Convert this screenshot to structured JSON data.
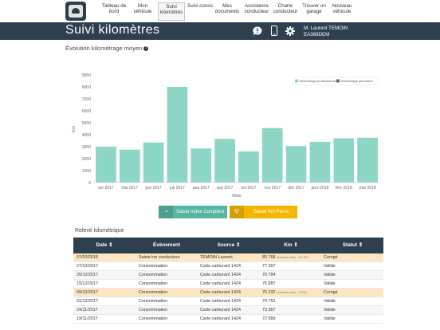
{
  "nav": {
    "items": [
      {
        "l1": "Tableau de",
        "l2": "bord"
      },
      {
        "l1": "Mon",
        "l2": "véhicule"
      },
      {
        "l1": "Suivi",
        "l2": "kilomètres"
      },
      {
        "l1": "Suivi conso",
        "l2": ""
      },
      {
        "l1": "Mes",
        "l2": "documents"
      },
      {
        "l1": "Assistance",
        "l2": "conducteur"
      },
      {
        "l1": "Charte",
        "l2": "conducteur"
      },
      {
        "l1": "Trouver un",
        "l2": "garage"
      },
      {
        "l1": "Nouveau",
        "l2": "véhicule"
      }
    ],
    "active_index": 2
  },
  "header": {
    "title": "Suivi kilomètres",
    "user_name": "M. Laurent TEMOIN",
    "plate": "EA368DEM",
    "icons": [
      "alert-icon",
      "phone-icon",
      "gear-icon"
    ]
  },
  "chart_section": {
    "title": "Évolution kilométrage moyen",
    "info": "?"
  },
  "chart_data": {
    "type": "bar",
    "categories": [
      "avr 2017",
      "mai 2017",
      "juin 2017",
      "juil 2017",
      "aou 2017",
      "sep 2017",
      "oct 2017",
      "nov 2017",
      "déc 2017",
      "janv 2018",
      "févr 2018",
      "mar 2018"
    ],
    "series": [
      {
        "name": "Kilométrage professionnel",
        "values": [
          3000,
          2750,
          3350,
          8000,
          2850,
          3650,
          2600,
          4550,
          3050,
          3400,
          3700,
          3750
        ]
      },
      {
        "name": "Kilométrage personnel",
        "values": [
          0,
          0,
          0,
          0,
          0,
          0,
          0,
          0,
          0,
          0,
          0,
          0
        ]
      }
    ],
    "xlabel": "Mois",
    "ylabel": "Km",
    "ylim": [
      0,
      9000
    ],
    "yticks": [
      0,
      1000,
      2000,
      3000,
      4000,
      5000,
      6000,
      7000,
      8000,
      9000
    ],
    "grid": false,
    "legend": "top-right",
    "colors": {
      "pro": "#8dd5c4",
      "perso": "#5b7275"
    }
  },
  "buttons": {
    "index": {
      "label": "Saisie Index Compteur",
      "icon": "gauge-icon"
    },
    "perso": {
      "label": "Saisie Km Perso",
      "icon": "road-icon"
    }
  },
  "table_section": {
    "title": "Relevé kilométrique"
  },
  "table": {
    "headers": [
      "Date ⇕",
      "Évènement",
      "Source ⇕",
      "Km ⇕",
      "Statut ⇕"
    ],
    "rows": [
      {
        "date": "07/03/2018",
        "event": "Saisie km conducteur",
        "source": "TEMOIN Laurent",
        "km": "85 768",
        "km_note": "(Ancienne valeur : 101 360)",
        "status": "Corrigé",
        "style": "hl"
      },
      {
        "date": "27/12/2017",
        "event": "Consommation",
        "source": "Carte carburant 1424",
        "km": "77 397",
        "km_note": "",
        "status": "Valide",
        "style": ""
      },
      {
        "date": "20/12/2017",
        "event": "Consommation",
        "source": "Carte carburant 1424",
        "km": "76 784",
        "km_note": "",
        "status": "Valide",
        "style": "alt"
      },
      {
        "date": "15/12/2017",
        "event": "Consommation",
        "source": "Carte carburant 1424",
        "km": "75 887",
        "km_note": "",
        "status": "Valide",
        "style": ""
      },
      {
        "date": "09/12/2017",
        "event": "Consommation",
        "source": "Carte carburant 1424",
        "km": "75 232",
        "km_note": "(Ancienne valeur : 78 232)",
        "status": "Corrigé",
        "style": "hl"
      },
      {
        "date": "01/12/2017",
        "event": "Consommation",
        "source": "Carte carburant 1424",
        "km": "74 751",
        "km_note": "",
        "status": "Valide",
        "style": ""
      },
      {
        "date": "24/11/2017",
        "event": "Consommation",
        "source": "Carte carburant 1424",
        "km": "73 367",
        "km_note": "",
        "status": "Valide",
        "style": "alt"
      },
      {
        "date": "19/11/2017",
        "event": "Consommation",
        "source": "Carte carburant 1424",
        "km": "72 589",
        "km_note": "",
        "status": "Valide",
        "style": ""
      }
    ]
  }
}
